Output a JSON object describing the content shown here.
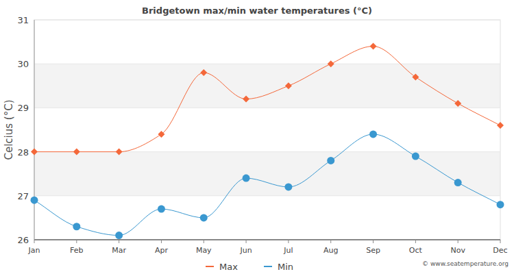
{
  "chart_data": {
    "type": "line",
    "title": "Bridgetown max/min water temperatures (°C)",
    "y_label": "Celcius (°C)",
    "source": "© www.seatemperature.org",
    "categories": [
      "Jan",
      "Feb",
      "Mar",
      "Apr",
      "May",
      "Jun",
      "Jul",
      "Aug",
      "Sep",
      "Oct",
      "Nov",
      "Dec"
    ],
    "series": [
      {
        "name": "Max",
        "color": "#f4683a",
        "marker": "diamond",
        "values": [
          28,
          28,
          28,
          28.4,
          29.8,
          29.2,
          29.5,
          30,
          30.4,
          29.7,
          29.1,
          28.6
        ]
      },
      {
        "name": "Min",
        "color": "#3a98d0",
        "marker": "circle",
        "values": [
          26.9,
          26.3,
          26.1,
          26.7,
          26.5,
          27.4,
          27.2,
          27.8,
          28.4,
          27.9,
          27.3,
          26.8
        ]
      }
    ],
    "ylim": [
      26,
      31
    ],
    "yticks": [
      26,
      27,
      28,
      29,
      30,
      31
    ],
    "grid": true,
    "legend": "bottom"
  }
}
